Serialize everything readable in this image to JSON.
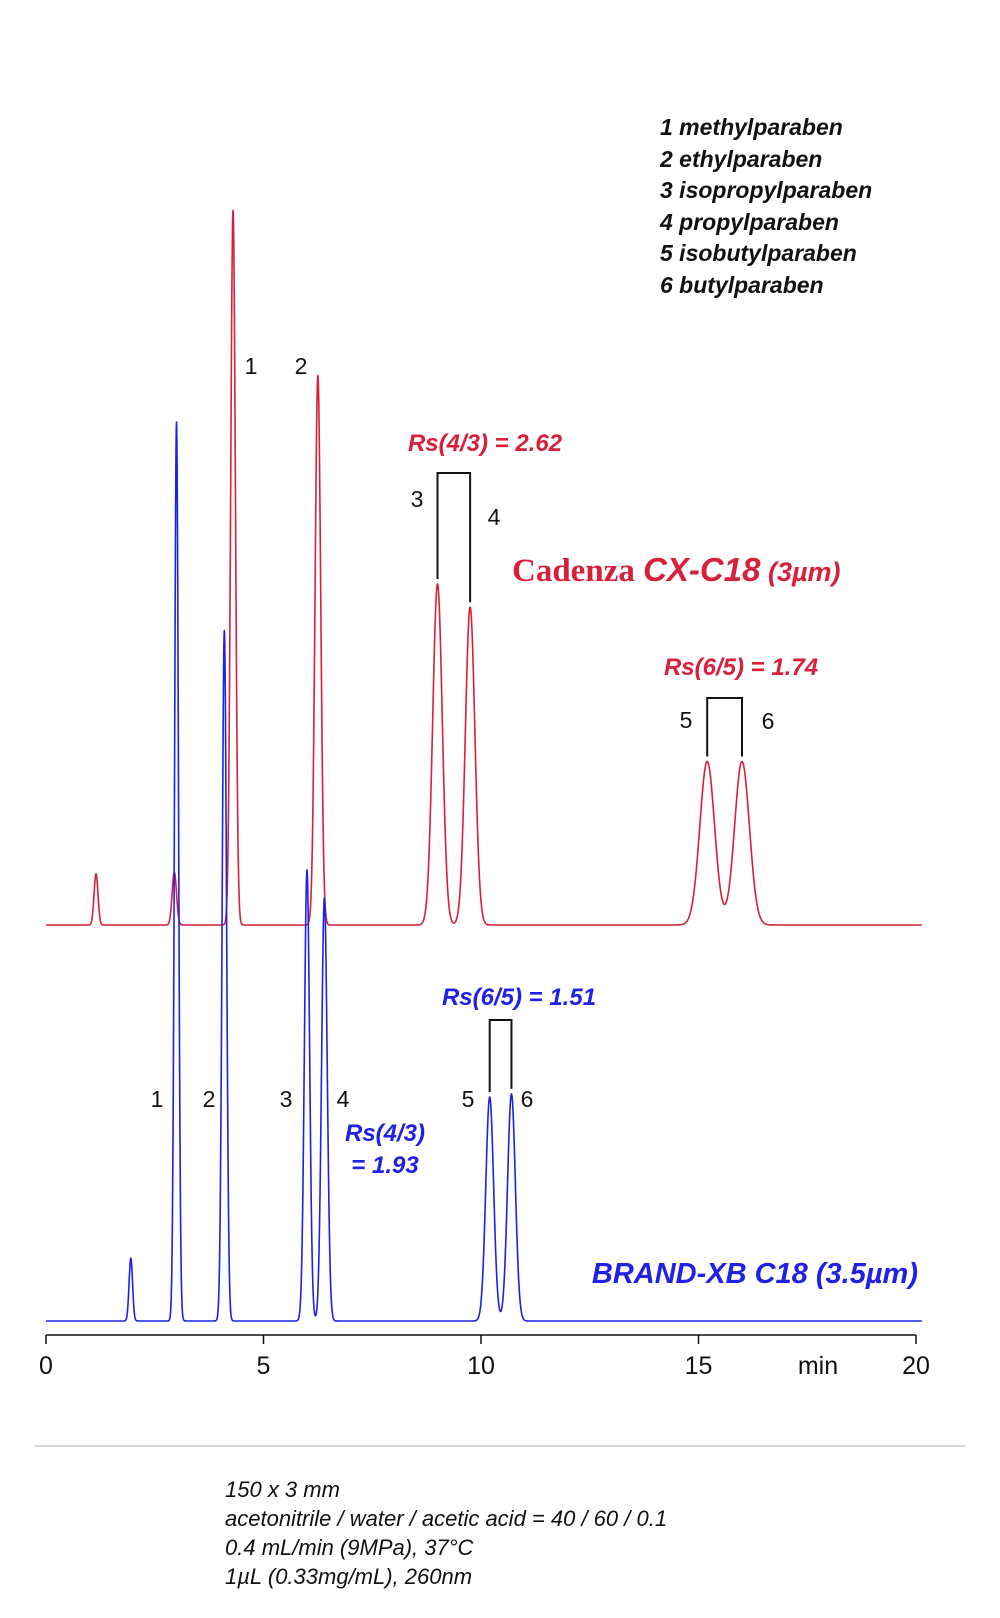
{
  "legend": {
    "items": [
      "1 methylparaben",
      "2 ethylparaben",
      "3 isopropylparaben",
      "4 propylparaben",
      "5 isobutylparaben",
      "6 butylparaben"
    ]
  },
  "conditions": [
    "150 x 3 mm",
    "acetonitrile / water / acetic acid = 40 / 60 / 0.1",
    "0.4 mL/min (9MPa), 37°C",
    "1µL (0.33mg/mL), 260nm"
  ],
  "chart_data": {
    "type": "line",
    "title": "",
    "xlabel": "min",
    "ylabel": "",
    "xlim": [
      0,
      20
    ],
    "x_ticks": [
      0,
      5,
      10,
      15,
      20
    ],
    "grid": false,
    "series": [
      {
        "name": "Cadenza CX-C18 (3µm)",
        "name_parts": [
          "Cadenza ",
          "CX-C18",
          " (3µm)"
        ],
        "color": "#d81f3c",
        "peaks": [
          {
            "time": 1.15,
            "height": 0.066,
            "width": 0.045,
            "label": ""
          },
          {
            "time": 2.95,
            "height": 0.068,
            "width": 0.05,
            "label": ""
          },
          {
            "time": 4.3,
            "height": 0.922,
            "width": 0.055,
            "label": "1"
          },
          {
            "time": 6.25,
            "height": 0.709,
            "width": 0.065,
            "label": "2"
          },
          {
            "time": 9.0,
            "height": 0.44,
            "width": 0.11,
            "label": "3"
          },
          {
            "time": 9.75,
            "height": 0.41,
            "width": 0.11,
            "label": "4"
          },
          {
            "time": 15.2,
            "height": 0.211,
            "width": 0.17,
            "label": "5"
          },
          {
            "time": 16.0,
            "height": 0.211,
            "width": 0.17,
            "label": "6"
          }
        ],
        "resolutions": [
          {
            "label": "Rs(4/3) = 2.62",
            "between": [
              3,
              4
            ]
          },
          {
            "label": "Rs(6/5) = 1.74",
            "between": [
              5,
              6
            ]
          }
        ]
      },
      {
        "name": "BRAND-XB C18 (3.5µm)",
        "color": "#2020e6",
        "peaks": [
          {
            "time": 1.95,
            "height": 0.081,
            "width": 0.04,
            "label": ""
          },
          {
            "time": 3.0,
            "height": 1.16,
            "width": 0.045,
            "label": "1"
          },
          {
            "time": 4.1,
            "height": 0.891,
            "width": 0.05,
            "label": "2"
          },
          {
            "time": 6.0,
            "height": 0.582,
            "width": 0.06,
            "label": "3"
          },
          {
            "time": 6.4,
            "height": 0.546,
            "width": 0.065,
            "label": "4"
          },
          {
            "time": 10.2,
            "height": 0.289,
            "width": 0.09,
            "label": "5"
          },
          {
            "time": 10.7,
            "height": 0.293,
            "width": 0.09,
            "label": "6"
          }
        ],
        "resolutions": [
          {
            "label": "Rs(6/5) = 1.51",
            "between": [
              5,
              6
            ]
          },
          {
            "label_lines": [
              "Rs(4/3)",
              "= 1.93"
            ],
            "between": [
              3,
              4
            ]
          }
        ]
      }
    ]
  }
}
